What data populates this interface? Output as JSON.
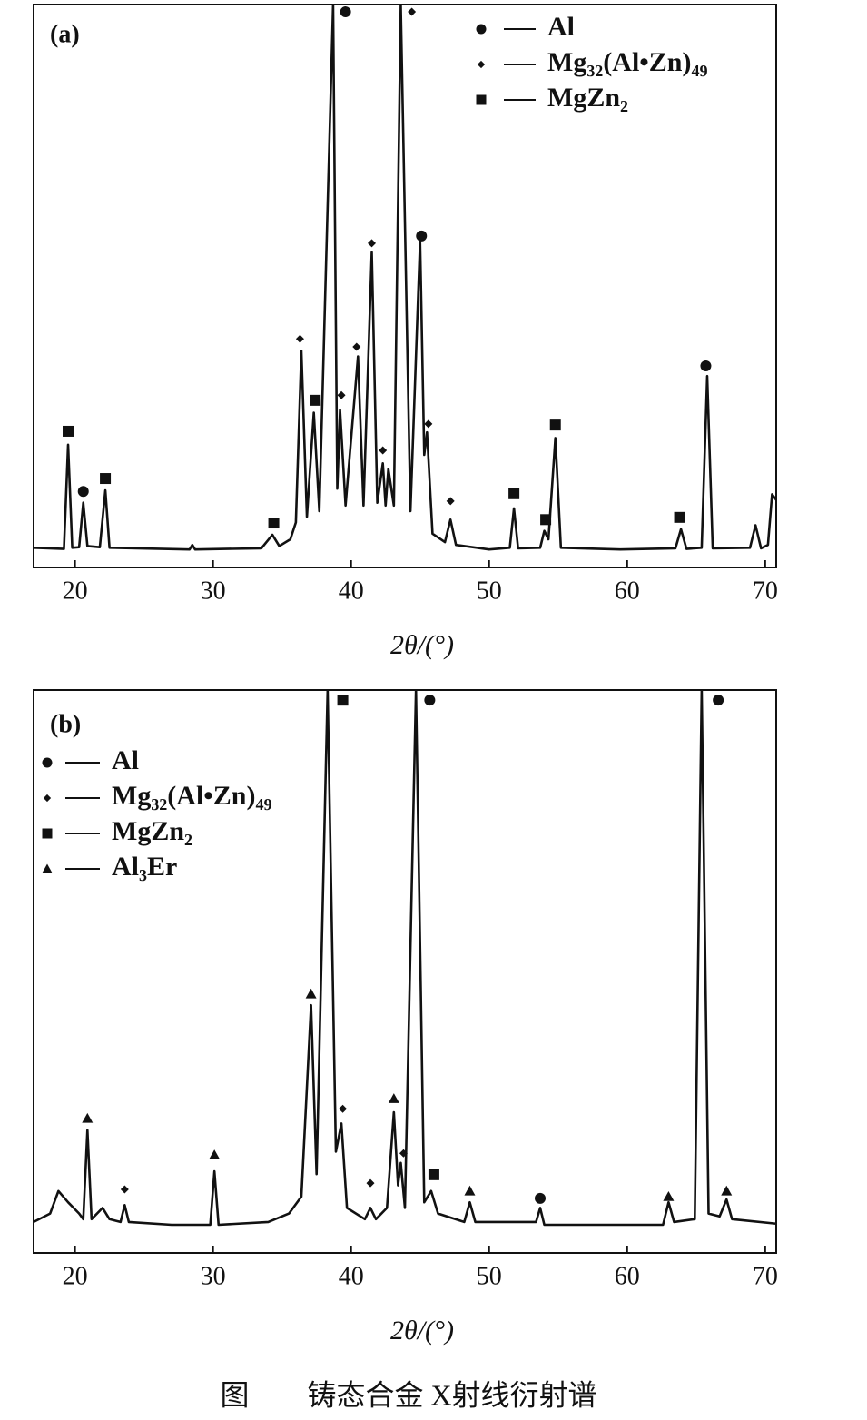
{
  "chart_data": [
    {
      "type": "line",
      "panel_label": "(a)",
      "xlabel": "2θ/(°)",
      "xlim": [
        17,
        70.8
      ],
      "xticks": [
        20,
        30,
        40,
        50,
        60,
        70
      ],
      "ylim": [
        0,
        100
      ],
      "series": [
        {
          "color": "#111111",
          "x": [
            17,
            19.2,
            19.5,
            19.8,
            20.3,
            20.6,
            20.9,
            21.8,
            22.2,
            22.5,
            28.3,
            28.5,
            28.7,
            33.5,
            34.3,
            34.8,
            35.6,
            36.0,
            36.4,
            36.8,
            37.3,
            37.7,
            38.7,
            39.0,
            39.2,
            39.6,
            40.5,
            40.9,
            41.5,
            41.9,
            42.3,
            42.5,
            42.7,
            43.1,
            43.6,
            44.3,
            45.0,
            45.3,
            45.5,
            45.9,
            46.8,
            47.2,
            47.6,
            50.0,
            51.5,
            51.8,
            52.1,
            53.7,
            54.0,
            54.3,
            54.8,
            55.2,
            59.5,
            63.5,
            63.9,
            64.3,
            65.4,
            65.8,
            66.2,
            68.9,
            69.3,
            69.7,
            70.2,
            70.5,
            70.8
          ],
          "values": [
            3.5,
            3.3,
            21.8,
            3.5,
            3.6,
            11.5,
            3.8,
            3.6,
            13.7,
            3.5,
            3.2,
            4,
            3.2,
            3.4,
            5.8,
            3.8,
            5,
            8,
            38.5,
            9,
            27.5,
            10,
            100,
            14,
            28,
            11,
            37.5,
            11,
            56,
            11.5,
            18.5,
            11,
            17.5,
            11,
            100,
            10,
            58,
            20,
            24,
            6,
            4.5,
            8.5,
            4,
            3.2,
            3.5,
            10.5,
            3.4,
            3.5,
            6.5,
            5,
            23,
            3.5,
            3.2,
            3.4,
            6.8,
            3.3,
            3.5,
            34,
            3.4,
            3.5,
            7.5,
            3.4,
            4,
            13,
            12
          ]
        }
      ],
      "markers": [
        {
          "symbol": "square",
          "x": 19.5,
          "y": 24.2
        },
        {
          "symbol": "circle",
          "x": 20.6,
          "y": 13.5
        },
        {
          "symbol": "square",
          "x": 22.2,
          "y": 15.8
        },
        {
          "symbol": "square",
          "x": 34.4,
          "y": 7.9
        },
        {
          "symbol": "diamond",
          "x": 36.3,
          "y": 40.6
        },
        {
          "symbol": "square",
          "x": 37.4,
          "y": 29.7
        },
        {
          "symbol": "circle",
          "x": 39.6,
          "y": 98.7
        },
        {
          "symbol": "diamond",
          "x": 39.3,
          "y": 30.6
        },
        {
          "symbol": "diamond",
          "x": 40.4,
          "y": 39.2
        },
        {
          "symbol": "diamond",
          "x": 41.5,
          "y": 57.6
        },
        {
          "symbol": "diamond",
          "x": 42.3,
          "y": 20.8
        },
        {
          "symbol": "diamond",
          "x": 44.4,
          "y": 98.7
        },
        {
          "symbol": "circle",
          "x": 45.1,
          "y": 58.9
        },
        {
          "symbol": "diamond",
          "x": 45.6,
          "y": 25.5
        },
        {
          "symbol": "diamond",
          "x": 47.2,
          "y": 11.8
        },
        {
          "symbol": "square",
          "x": 51.8,
          "y": 13.1
        },
        {
          "symbol": "square",
          "x": 54.1,
          "y": 8.5
        },
        {
          "symbol": "square",
          "x": 54.8,
          "y": 25.3
        },
        {
          "symbol": "square",
          "x": 63.8,
          "y": 8.9
        },
        {
          "symbol": "circle",
          "x": 65.7,
          "y": 35.8
        }
      ],
      "legend": [
        {
          "symbol": "circle",
          "label": "Al"
        },
        {
          "symbol": "diamond",
          "label": "Mg₃₂(Al•Zn)₄₉"
        },
        {
          "symbol": "square",
          "label": "MgZn₂"
        }
      ]
    },
    {
      "type": "line",
      "panel_label": "(b)",
      "xlabel": "2θ/(°)",
      "xlim": [
        17,
        70.8
      ],
      "xticks": [
        20,
        30,
        40,
        50,
        60,
        70
      ],
      "ylim": [
        0,
        100
      ],
      "series": [
        {
          "color": "#111111",
          "x": [
            17,
            18.2,
            18.8,
            19.5,
            20.3,
            20.6,
            20.9,
            21.2,
            22,
            22.5,
            23.3,
            23.6,
            23.9,
            27,
            29.8,
            30.1,
            30.4,
            34,
            35.5,
            36.4,
            37.1,
            37.5,
            38.3,
            38.9,
            39.3,
            39.7,
            41.0,
            41.4,
            41.8,
            42.6,
            43.1,
            43.4,
            43.6,
            43.9,
            44.7,
            45.3,
            45.8,
            46.3,
            48.2,
            48.6,
            49,
            53.4,
            53.7,
            54,
            62.6,
            63.0,
            63.4,
            64.9,
            65.4,
            65.9,
            66.7,
            67.2,
            67.6,
            70.8
          ],
          "values": [
            5.5,
            7,
            11,
            9,
            7,
            6,
            21.8,
            6,
            8,
            6,
            5.5,
            8.5,
            5.5,
            5,
            5,
            14.5,
            5,
            5.5,
            7,
            10,
            44,
            14,
            100,
            18,
            23,
            8,
            6,
            8,
            6,
            8,
            25,
            12,
            16,
            8,
            100,
            9,
            11,
            7,
            5.5,
            9,
            5.5,
            5.5,
            8,
            5,
            5,
            9,
            5.5,
            6,
            100,
            7,
            6.5,
            9.5,
            6,
            5.2
          ]
        }
      ],
      "markers": [
        {
          "symbol": "triangle",
          "x": 20.9,
          "y": 23.9
        },
        {
          "symbol": "diamond",
          "x": 23.6,
          "y": 11.3
        },
        {
          "symbol": "triangle",
          "x": 30.1,
          "y": 17.4
        },
        {
          "symbol": "triangle",
          "x": 37.1,
          "y": 46
        },
        {
          "symbol": "square",
          "x": 39.4,
          "y": 98.2
        },
        {
          "symbol": "diamond",
          "x": 39.4,
          "y": 25.6
        },
        {
          "symbol": "diamond",
          "x": 41.4,
          "y": 12.4
        },
        {
          "symbol": "triangle",
          "x": 43.1,
          "y": 27.4
        },
        {
          "symbol": "diamond",
          "x": 43.8,
          "y": 17.7
        },
        {
          "symbol": "circle",
          "x": 45.7,
          "y": 98.2
        },
        {
          "symbol": "square",
          "x": 46.0,
          "y": 13.9
        },
        {
          "symbol": "triangle",
          "x": 48.6,
          "y": 11
        },
        {
          "symbol": "circle",
          "x": 53.7,
          "y": 9.7
        },
        {
          "symbol": "triangle",
          "x": 63.0,
          "y": 10
        },
        {
          "symbol": "circle",
          "x": 66.6,
          "y": 98.2
        },
        {
          "symbol": "triangle",
          "x": 67.2,
          "y": 11
        }
      ],
      "legend": [
        {
          "symbol": "circle",
          "label": "Al"
        },
        {
          "symbol": "diamond",
          "label": "Mg₃₂(Al•Zn)₄₉"
        },
        {
          "symbol": "square",
          "label": "MgZn₂"
        },
        {
          "symbol": "triangle",
          "label": "Al₃Er"
        }
      ]
    }
  ],
  "caption": "图　　铸态合金 X射线衍射谱"
}
